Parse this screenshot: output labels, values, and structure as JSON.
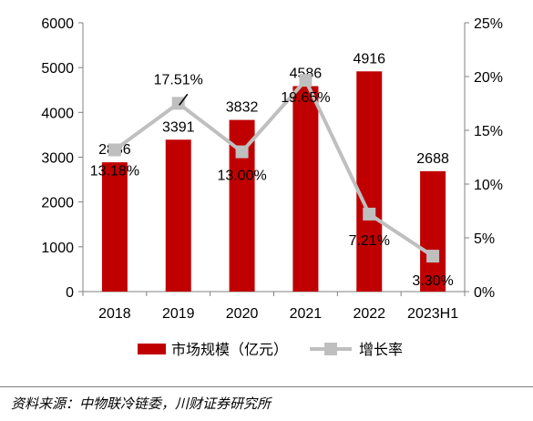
{
  "chart_data": {
    "type": "bar",
    "categories": [
      "2018",
      "2019",
      "2020",
      "2021",
      "2022",
      "2023H1"
    ],
    "series": [
      {
        "name": "市场规模（亿元）",
        "type": "bar",
        "axis": "left",
        "color": "#c00000",
        "values": [
          2886,
          3391,
          3832,
          4586,
          4916,
          2688
        ],
        "labels": [
          "2886",
          "3391",
          "3832",
          "4586",
          "4916",
          "2688"
        ]
      },
      {
        "name": "增长率",
        "type": "line",
        "axis": "right",
        "color": "#bfbfbf",
        "values": [
          13.18,
          17.51,
          13.0,
          19.65,
          7.21,
          3.3
        ],
        "labels": [
          "13.18%",
          "17.51%",
          "13.00%",
          "19.65%",
          "7.21%",
          "3.30%"
        ]
      }
    ],
    "y_left": {
      "ylim": [
        0,
        6000
      ],
      "ticks": [
        "0",
        "1000",
        "2000",
        "3000",
        "4000",
        "5000",
        "6000"
      ]
    },
    "y_right": {
      "ylim": [
        0,
        25
      ],
      "ticks": [
        "0%",
        "5%",
        "10%",
        "15%",
        "20%",
        "25%"
      ]
    },
    "title": "",
    "xlabel": "",
    "ylabel": "",
    "legend_position": "bottom",
    "grid": false
  },
  "source": "资料来源：中物联冷链委，川财证券研究所"
}
